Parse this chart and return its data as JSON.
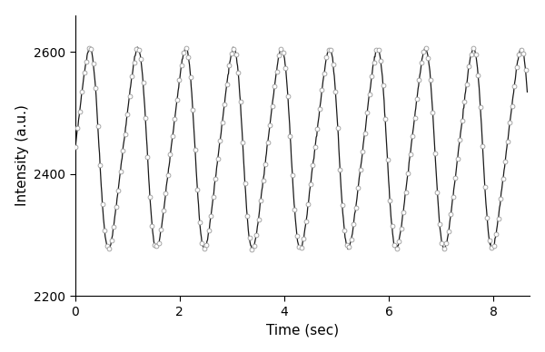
{
  "title": "",
  "xlabel": "Time (sec)",
  "ylabel": "Intensity (a.u.)",
  "xlim": [
    0,
    8.7
  ],
  "ylim": [
    2200,
    2660
  ],
  "yticks": [
    2200,
    2400,
    2600
  ],
  "xticks": [
    0,
    2,
    4,
    6,
    8
  ],
  "line_color": "#1a1a1a",
  "marker": "o",
  "marker_facecolor": "#ffffff",
  "marker_edgecolor": "#999999",
  "marker_size": 3.5,
  "marker_edge_width": 0.6,
  "line_width": 0.9,
  "t_end": 8.65,
  "n_points": 800,
  "y_min": 2278,
  "y_max": 2605,
  "frequency": 1.09,
  "background_color": "#ffffff",
  "figsize": [
    6.0,
    3.88
  ],
  "dpi": 100
}
